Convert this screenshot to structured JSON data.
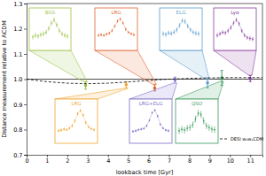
{
  "chart_data": {
    "type": "scatter",
    "x_label": "lookback time [Gyr]",
    "y_label": "Distance measurement relative to ΛCDM",
    "xlim": [
      0,
      11.6
    ],
    "ylim": [
      0.7,
      1.3
    ],
    "xticks": [
      0,
      1,
      2,
      3,
      4,
      5,
      6,
      7,
      8,
      9,
      10,
      11
    ],
    "yticks": [
      0.7,
      0.8,
      0.9,
      {
        "value": 1,
        "label": "1.0"
      },
      1.1,
      1.2,
      1.3
    ],
    "hline": 1,
    "marker": "circle",
    "legend": "lower right",
    "inset_ylim": [
      0,
      1
    ],
    "series": [
      {
        "name": "BGS",
        "color": "#9bc247",
        "x": [
          2.9
        ],
        "values": [
          0.975
        ],
        "errors": [
          0.015
        ],
        "inset_values": [
          0.35,
          0.4,
          0.37,
          0.42,
          0.45,
          0.5,
          0.62,
          0.8,
          0.9,
          0.74,
          0.55,
          0.45,
          0.4,
          0.37
        ],
        "inset_error": 0.08
      },
      {
        "name": "LRG",
        "color": "#f0a630",
        "x": [
          4.9
        ],
        "values": [
          0.978
        ],
        "errors": [
          0.012
        ],
        "inset_values": [
          0.3,
          0.32,
          0.35,
          0.33,
          0.38,
          0.45,
          0.6,
          0.82,
          0.92,
          0.78,
          0.55,
          0.42,
          0.36,
          0.33
        ],
        "inset_error": 0.05
      },
      {
        "name": "LRG",
        "color": "#e2622b",
        "x": [
          6.3
        ],
        "values": [
          0.965
        ],
        "errors": [
          0.012
        ],
        "inset_values": [
          0.4,
          0.42,
          0.4,
          0.44,
          0.47,
          0.55,
          0.7,
          0.86,
          0.93,
          0.8,
          0.6,
          0.5,
          0.45,
          0.42
        ],
        "inset_error": 0.05
      },
      {
        "name": "LRG+ELG",
        "color": "#7a6bc9",
        "x": [
          7.3
        ],
        "values": [
          0.998
        ],
        "errors": [
          0.01
        ],
        "inset_values": [
          0.28,
          0.3,
          0.33,
          0.35,
          0.37,
          0.45,
          0.62,
          0.85,
          0.93,
          0.75,
          0.5,
          0.38,
          0.32,
          0.3
        ],
        "inset_error": 0.04
      },
      {
        "name": "ELG",
        "color": "#5a9ccb",
        "x": [
          8.9
        ],
        "values": [
          0.985
        ],
        "errors": [
          0.02
        ],
        "inset_values": [
          0.45,
          0.43,
          0.48,
          0.46,
          0.5,
          0.58,
          0.72,
          0.88,
          0.85,
          0.7,
          0.58,
          0.5,
          0.47,
          0.45
        ],
        "inset_error": 0.08
      },
      {
        "name": "QSO",
        "color": "#399a5b",
        "x": [
          9.6
        ],
        "values": [
          1.005
        ],
        "errors": [
          0.03
        ],
        "inset_values": [
          0.3,
          0.35,
          0.32,
          0.38,
          0.4,
          0.48,
          0.66,
          0.84,
          0.8,
          0.6,
          0.45,
          0.4,
          0.35,
          0.33
        ],
        "inset_error": 0.1
      },
      {
        "name": "Lyα",
        "color": "#8a3e9f",
        "x": [
          11.0
        ],
        "values": [
          1.002
        ],
        "errors": [
          0.012
        ],
        "inset_values": [
          0.4,
          0.45,
          0.5,
          0.48,
          0.55,
          0.65,
          0.8,
          0.9,
          0.78,
          0.55,
          0.4,
          0.33,
          0.3,
          0.28
        ],
        "inset_error": 0.07
      },
      {
        "name": "DESI w₀wₐCDM",
        "type": "line",
        "line_style": "dashed",
        "color": "#000000",
        "x": [
          0,
          1,
          2,
          3,
          4,
          5,
          6,
          7,
          8,
          9,
          10,
          11,
          11.6
        ],
        "values": [
          1.0,
          0.99,
          0.984,
          0.982,
          0.984,
          0.989,
          0.995,
          1.0,
          1.003,
          1.005,
          1.006,
          1.006,
          1.006
        ]
      }
    ]
  }
}
